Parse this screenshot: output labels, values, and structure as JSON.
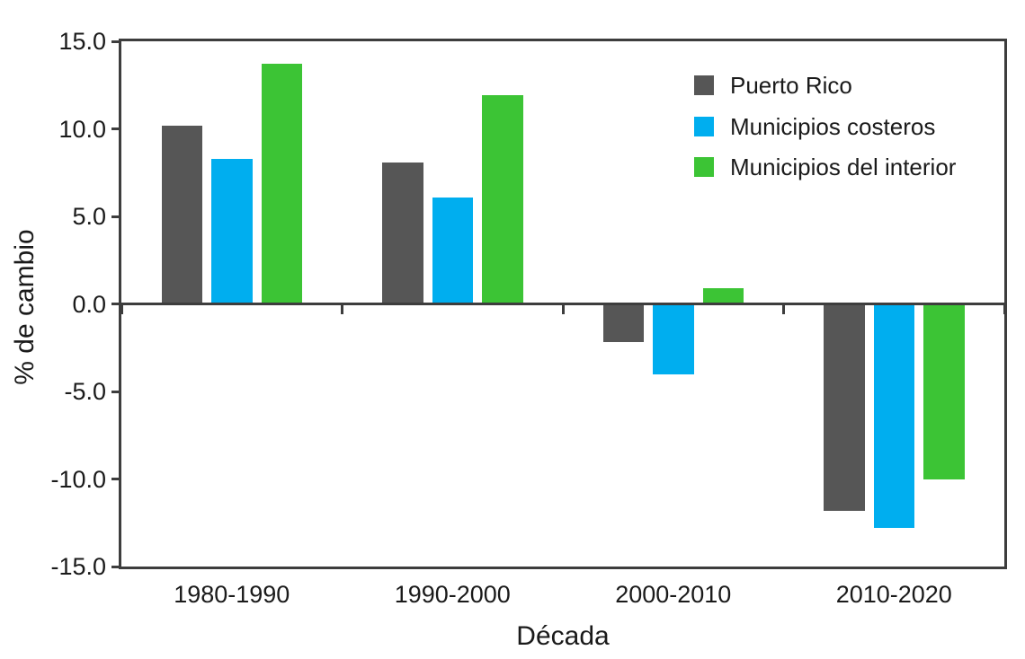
{
  "chart_data": {
    "type": "bar",
    "title": "",
    "categories": [
      "1980-1990",
      "1990-2000",
      "2000-2010",
      "2010-2020"
    ],
    "series": [
      {
        "name": "Puerto Rico",
        "color": "#565656",
        "values": [
          10.2,
          8.1,
          -2.2,
          -11.8
        ]
      },
      {
        "name": "Municipios costeros",
        "color": "#00AEEF",
        "values": [
          8.3,
          6.1,
          -4.0,
          -12.8
        ]
      },
      {
        "name": "Municipios del interior",
        "color": "#3CC435",
        "values": [
          13.7,
          11.9,
          0.9,
          -10.0
        ]
      }
    ],
    "xlabel": "Década",
    "ylabel": "% de cambio",
    "ylim": [
      -15,
      15
    ],
    "ytick_step": 5,
    "ytick_labels": [
      "15.0",
      "10.0",
      "5.0",
      "0.0",
      "-5.0",
      "-10.0",
      "-15.0"
    ],
    "legend_position": "top-right-inside",
    "grid": false,
    "axis_color": "#3d3d3d",
    "text_color": "#1a1a1a"
  }
}
